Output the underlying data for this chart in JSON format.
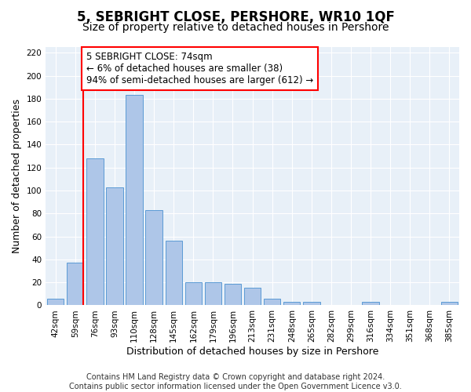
{
  "title": "5, SEBRIGHT CLOSE, PERSHORE, WR10 1QF",
  "subtitle": "Size of property relative to detached houses in Pershore",
  "xlabel": "Distribution of detached houses by size in Pershore",
  "ylabel": "Number of detached properties",
  "footer_line1": "Contains HM Land Registry data © Crown copyright and database right 2024.",
  "footer_line2": "Contains public sector information licensed under the Open Government Licence v3.0.",
  "categories": [
    "42sqm",
    "59sqm",
    "76sqm",
    "93sqm",
    "110sqm",
    "128sqm",
    "145sqm",
    "162sqm",
    "179sqm",
    "196sqm",
    "213sqm",
    "231sqm",
    "248sqm",
    "265sqm",
    "282sqm",
    "299sqm",
    "316sqm",
    "334sqm",
    "351sqm",
    "368sqm",
    "385sqm"
  ],
  "values": [
    6,
    37,
    128,
    103,
    183,
    83,
    56,
    20,
    20,
    19,
    15,
    6,
    3,
    3,
    0,
    0,
    3,
    0,
    0,
    0,
    3
  ],
  "bar_color": "#aec6e8",
  "bar_edge_color": "#5b9bd5",
  "annotation_line1": "5 SEBRIGHT CLOSE: 74sqm",
  "annotation_line2": "← 6% of detached houses are smaller (38)",
  "annotation_line3": "94% of semi-detached houses are larger (612) →",
  "annotation_box_color": "white",
  "annotation_box_edge_color": "red",
  "vline_x_index": 1,
  "vline_color": "red",
  "ylim": [
    0,
    225
  ],
  "yticks": [
    0,
    20,
    40,
    60,
    80,
    100,
    120,
    140,
    160,
    180,
    200,
    220
  ],
  "bg_color": "#e8f0f8",
  "title_fontsize": 12,
  "subtitle_fontsize": 10,
  "axis_label_fontsize": 9,
  "tick_fontsize": 7.5,
  "annotation_fontsize": 8.5,
  "footer_fontsize": 7
}
